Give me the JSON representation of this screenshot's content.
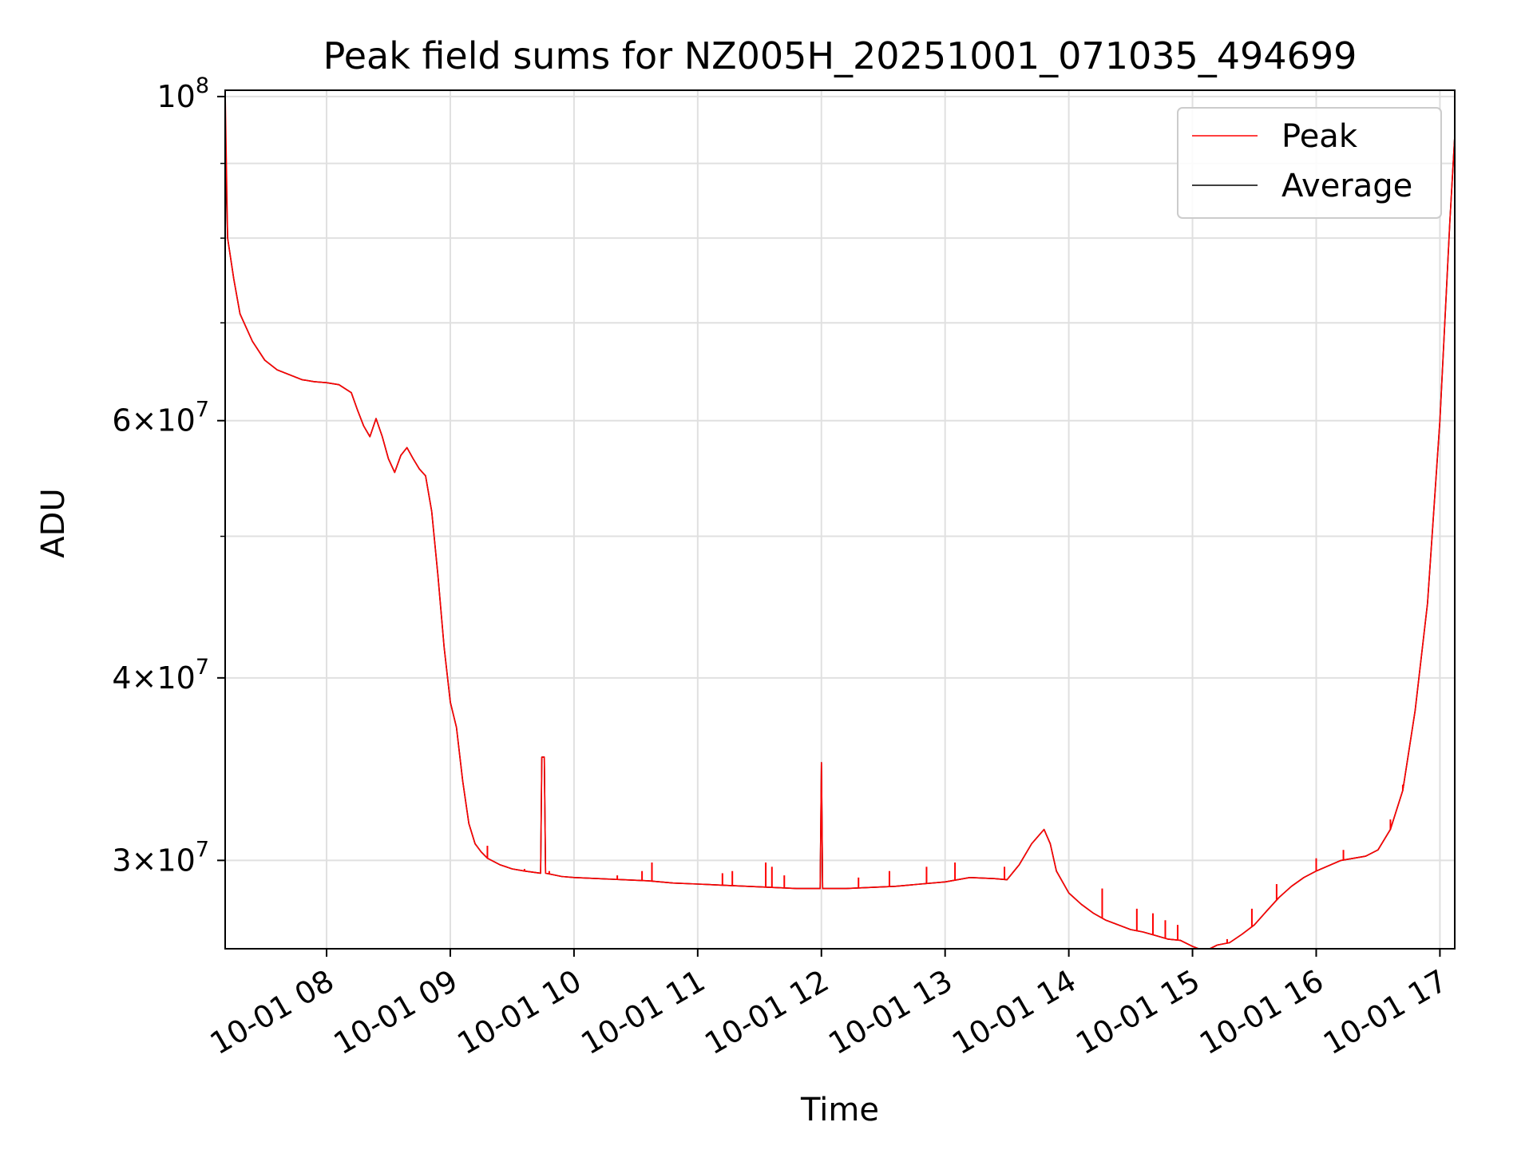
{
  "chart_data": {
    "type": "line",
    "title": "Peak field sums for NZ005H_20251001_071035_494699",
    "xlabel": "Time",
    "ylabel": "ADU",
    "yscale": "log",
    "ylim": [
      26100000,
      101000000
    ],
    "xlim_hours": [
      7.18,
      17.12
    ],
    "grid": true,
    "legend_position": "top-right",
    "x_ticks": [
      {
        "value": 8,
        "label": "10-01 08"
      },
      {
        "value": 9,
        "label": "10-01 09"
      },
      {
        "value": 10,
        "label": "10-01 10"
      },
      {
        "value": 11,
        "label": "10-01 11"
      },
      {
        "value": 12,
        "label": "10-01 12"
      },
      {
        "value": 13,
        "label": "10-01 13"
      },
      {
        "value": 14,
        "label": "10-01 14"
      },
      {
        "value": 15,
        "label": "10-01 15"
      },
      {
        "value": 16,
        "label": "10-01 16"
      },
      {
        "value": 17,
        "label": "10-01 17"
      }
    ],
    "y_major_ticks": [
      {
        "value": 100000000,
        "mantissa": "",
        "base": "10",
        "exponent": "8"
      },
      {
        "value": 60000000,
        "mantissa": "6×",
        "base": "10",
        "exponent": "7"
      },
      {
        "value": 40000000,
        "mantissa": "4×",
        "base": "10",
        "exponent": "7"
      },
      {
        "value": 30000000,
        "mantissa": "3×",
        "base": "10",
        "exponent": "7"
      }
    ],
    "y_minor_ticks": [
      90000000,
      80000000,
      70000000,
      50000000
    ],
    "series": [
      {
        "name": "Average",
        "color": "#000000",
        "points": [
          [
            7.18,
            92000000
          ],
          [
            7.2,
            80000000
          ],
          [
            7.25,
            75000000
          ],
          [
            7.3,
            71000000
          ],
          [
            7.4,
            68000000
          ],
          [
            7.5,
            66000000
          ],
          [
            7.6,
            65000000
          ],
          [
            7.7,
            64500000
          ],
          [
            7.8,
            64000000
          ],
          [
            7.9,
            63800000
          ],
          [
            8.0,
            63700000
          ],
          [
            8.1,
            63500000
          ],
          [
            8.2,
            62700000
          ],
          [
            8.25,
            61000000
          ],
          [
            8.3,
            59500000
          ],
          [
            8.35,
            58500000
          ],
          [
            8.4,
            60200000
          ],
          [
            8.45,
            58500000
          ],
          [
            8.5,
            56500000
          ],
          [
            8.55,
            55300000
          ],
          [
            8.6,
            56800000
          ],
          [
            8.65,
            57500000
          ],
          [
            8.7,
            56500000
          ],
          [
            8.75,
            55600000
          ],
          [
            8.8,
            55000000
          ],
          [
            8.85,
            52000000
          ],
          [
            8.9,
            47000000
          ],
          [
            8.95,
            42000000
          ],
          [
            9.0,
            38500000
          ],
          [
            9.05,
            37000000
          ],
          [
            9.1,
            34000000
          ],
          [
            9.15,
            31800000
          ],
          [
            9.2,
            30800000
          ],
          [
            9.25,
            30400000
          ],
          [
            9.3,
            30100000
          ],
          [
            9.4,
            29800000
          ],
          [
            9.5,
            29600000
          ],
          [
            9.6,
            29500000
          ],
          [
            9.73,
            29400000
          ],
          [
            9.74,
            35300000
          ],
          [
            9.76,
            35300000
          ],
          [
            9.77,
            29400000
          ],
          [
            9.9,
            29250000
          ],
          [
            10.0,
            29200000
          ],
          [
            10.2,
            29150000
          ],
          [
            10.4,
            29100000
          ],
          [
            10.6,
            29050000
          ],
          [
            10.8,
            28950000
          ],
          [
            11.0,
            28900000
          ],
          [
            11.2,
            28850000
          ],
          [
            11.4,
            28800000
          ],
          [
            11.6,
            28750000
          ],
          [
            11.8,
            28700000
          ],
          [
            11.99,
            28700000
          ],
          [
            12.0,
            35000000
          ],
          [
            12.01,
            28700000
          ],
          [
            12.2,
            28700000
          ],
          [
            12.4,
            28750000
          ],
          [
            12.6,
            28800000
          ],
          [
            12.8,
            28900000
          ],
          [
            13.0,
            29000000
          ],
          [
            13.2,
            29200000
          ],
          [
            13.4,
            29150000
          ],
          [
            13.5,
            29100000
          ],
          [
            13.6,
            29800000
          ],
          [
            13.7,
            30800000
          ],
          [
            13.8,
            31500000
          ],
          [
            13.85,
            30800000
          ],
          [
            13.9,
            29500000
          ],
          [
            14.0,
            28500000
          ],
          [
            14.1,
            28000000
          ],
          [
            14.2,
            27600000
          ],
          [
            14.3,
            27300000
          ],
          [
            14.4,
            27100000
          ],
          [
            14.5,
            26900000
          ],
          [
            14.6,
            26800000
          ],
          [
            14.7,
            26650000
          ],
          [
            14.8,
            26500000
          ],
          [
            14.9,
            26450000
          ],
          [
            15.0,
            26200000
          ],
          [
            15.1,
            26000000
          ],
          [
            15.2,
            26250000
          ],
          [
            15.3,
            26350000
          ],
          [
            15.4,
            26700000
          ],
          [
            15.5,
            27100000
          ],
          [
            15.6,
            27700000
          ],
          [
            15.7,
            28300000
          ],
          [
            15.8,
            28800000
          ],
          [
            15.9,
            29200000
          ],
          [
            16.0,
            29500000
          ],
          [
            16.2,
            30000000
          ],
          [
            16.4,
            30200000
          ],
          [
            16.5,
            30500000
          ],
          [
            16.6,
            31500000
          ],
          [
            16.7,
            33500000
          ],
          [
            16.8,
            38000000
          ],
          [
            16.9,
            45000000
          ],
          [
            17.0,
            60000000
          ],
          [
            17.05,
            73000000
          ],
          [
            17.08,
            82000000
          ],
          [
            17.12,
            94000000
          ]
        ]
      },
      {
        "name": "Peak",
        "color": "#ff0000",
        "points": [
          [
            7.18,
            101000000
          ],
          [
            7.2,
            80000000
          ],
          [
            7.25,
            75000000
          ],
          [
            7.3,
            71000000
          ],
          [
            7.4,
            68000000
          ],
          [
            7.5,
            66000000
          ],
          [
            7.6,
            65000000
          ],
          [
            7.7,
            64500000
          ],
          [
            7.8,
            64000000
          ],
          [
            7.9,
            63800000
          ],
          [
            8.0,
            63700000
          ],
          [
            8.1,
            63500000
          ],
          [
            8.2,
            62700000
          ],
          [
            8.25,
            61000000
          ],
          [
            8.3,
            59500000
          ],
          [
            8.35,
            58500000
          ],
          [
            8.4,
            60200000
          ],
          [
            8.45,
            58500000
          ],
          [
            8.5,
            56500000
          ],
          [
            8.55,
            55300000
          ],
          [
            8.6,
            56800000
          ],
          [
            8.65,
            57500000
          ],
          [
            8.7,
            56500000
          ],
          [
            8.75,
            55600000
          ],
          [
            8.8,
            55000000
          ],
          [
            8.85,
            52000000
          ],
          [
            8.9,
            47000000
          ],
          [
            8.95,
            42000000
          ],
          [
            9.0,
            38500000
          ],
          [
            9.05,
            37000000
          ],
          [
            9.1,
            34000000
          ],
          [
            9.15,
            31800000
          ],
          [
            9.2,
            30800000
          ],
          [
            9.25,
            30400000
          ],
          [
            9.3,
            30100000
          ],
          [
            9.4,
            29800000
          ],
          [
            9.5,
            29600000
          ],
          [
            9.6,
            29500000
          ],
          [
            9.73,
            29400000
          ],
          [
            9.74,
            35300000
          ],
          [
            9.76,
            35300000
          ],
          [
            9.77,
            29400000
          ],
          [
            9.9,
            29250000
          ],
          [
            10.0,
            29200000
          ],
          [
            10.2,
            29150000
          ],
          [
            10.4,
            29100000
          ],
          [
            10.6,
            29050000
          ],
          [
            10.8,
            28950000
          ],
          [
            11.0,
            28900000
          ],
          [
            11.2,
            28850000
          ],
          [
            11.4,
            28800000
          ],
          [
            11.6,
            28750000
          ],
          [
            11.8,
            28700000
          ],
          [
            11.99,
            28700000
          ],
          [
            12.0,
            35000000
          ],
          [
            12.01,
            28700000
          ],
          [
            12.2,
            28700000
          ],
          [
            12.4,
            28750000
          ],
          [
            12.6,
            28800000
          ],
          [
            12.8,
            28900000
          ],
          [
            13.0,
            29000000
          ],
          [
            13.2,
            29200000
          ],
          [
            13.4,
            29150000
          ],
          [
            13.5,
            29100000
          ],
          [
            13.6,
            29800000
          ],
          [
            13.7,
            30800000
          ],
          [
            13.8,
            31500000
          ],
          [
            13.85,
            30800000
          ],
          [
            13.9,
            29500000
          ],
          [
            14.0,
            28500000
          ],
          [
            14.1,
            28000000
          ],
          [
            14.2,
            27600000
          ],
          [
            14.3,
            27300000
          ],
          [
            14.4,
            27100000
          ],
          [
            14.5,
            26900000
          ],
          [
            14.6,
            26800000
          ],
          [
            14.7,
            26650000
          ],
          [
            14.8,
            26500000
          ],
          [
            14.9,
            26450000
          ],
          [
            15.0,
            26200000
          ],
          [
            15.1,
            26000000
          ],
          [
            15.2,
            26250000
          ],
          [
            15.3,
            26350000
          ],
          [
            15.4,
            26700000
          ],
          [
            15.5,
            27100000
          ],
          [
            15.6,
            27700000
          ],
          [
            15.7,
            28300000
          ],
          [
            15.8,
            28800000
          ],
          [
            15.9,
            29200000
          ],
          [
            16.0,
            29500000
          ],
          [
            16.2,
            30000000
          ],
          [
            16.4,
            30200000
          ],
          [
            16.5,
            30500000
          ],
          [
            16.6,
            31500000
          ],
          [
            16.7,
            33500000
          ],
          [
            16.8,
            38000000
          ],
          [
            16.9,
            45000000
          ],
          [
            17.0,
            60000000
          ],
          [
            17.05,
            73000000
          ],
          [
            17.08,
            82000000
          ],
          [
            17.12,
            94000000
          ]
        ],
        "spikes": [
          [
            9.3,
            30700000
          ],
          [
            9.6,
            29600000
          ],
          [
            9.8,
            29500000
          ],
          [
            10.35,
            29300000
          ],
          [
            10.55,
            29500000
          ],
          [
            10.63,
            29900000
          ],
          [
            11.2,
            29400000
          ],
          [
            11.28,
            29500000
          ],
          [
            11.55,
            29900000
          ],
          [
            11.6,
            29700000
          ],
          [
            11.7,
            29300000
          ],
          [
            12.3,
            29200000
          ],
          [
            12.55,
            29500000
          ],
          [
            12.85,
            29700000
          ],
          [
            13.08,
            29900000
          ],
          [
            13.48,
            29700000
          ],
          [
            14.27,
            28700000
          ],
          [
            14.55,
            27800000
          ],
          [
            14.68,
            27600000
          ],
          [
            14.78,
            27300000
          ],
          [
            14.88,
            27100000
          ],
          [
            15.28,
            26500000
          ],
          [
            15.48,
            27800000
          ],
          [
            15.68,
            28900000
          ],
          [
            16.0,
            30100000
          ],
          [
            16.22,
            30500000
          ],
          [
            16.6,
            32000000
          ],
          [
            16.7,
            33800000
          ]
        ]
      }
    ],
    "legend": [
      {
        "label": "Peak",
        "color": "#ff0000"
      },
      {
        "label": "Average",
        "color": "#000000"
      }
    ]
  }
}
